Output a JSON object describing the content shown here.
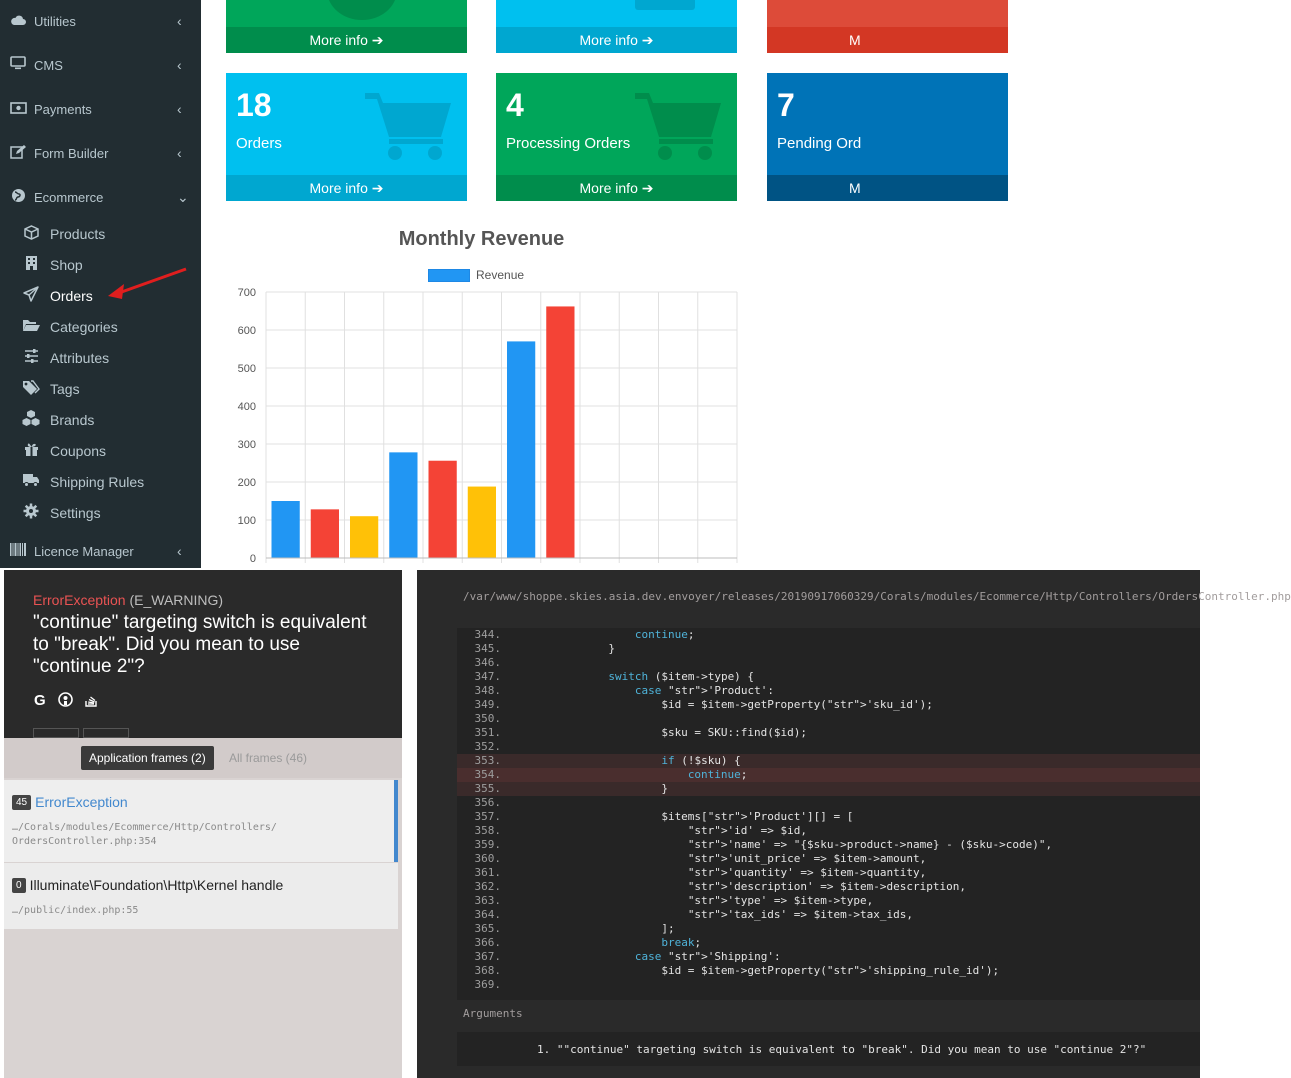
{
  "sidebar": {
    "items": [
      {
        "label": "Utilities",
        "icon": "cloud-icon"
      },
      {
        "label": "CMS",
        "icon": "desktop-icon"
      },
      {
        "label": "Payments",
        "icon": "money-icon"
      },
      {
        "label": "Form Builder",
        "icon": "edit-icon"
      },
      {
        "label": "Ecommerce",
        "icon": "globe-icon"
      }
    ],
    "ecommerce_children": [
      {
        "label": "Products",
        "icon": "cube-icon"
      },
      {
        "label": "Shop",
        "icon": "building-icon"
      },
      {
        "label": "Orders",
        "icon": "paper-plane-icon"
      },
      {
        "label": "Categories",
        "icon": "folder-open-icon"
      },
      {
        "label": "Attributes",
        "icon": "sliders-icon"
      },
      {
        "label": "Tags",
        "icon": "tags-icon"
      },
      {
        "label": "Brands",
        "icon": "cubes-icon"
      },
      {
        "label": "Coupons",
        "icon": "gift-icon"
      },
      {
        "label": "Shipping Rules",
        "icon": "truck-icon"
      },
      {
        "label": "Settings",
        "icon": "gear-icon"
      }
    ],
    "licence_manager": {
      "label": "Licence Manager",
      "icon": "barcode-icon"
    }
  },
  "boxes": {
    "top_row_more": [
      "More info",
      "More info",
      "M"
    ],
    "orders": {
      "value": "18",
      "label": "Orders",
      "more": "More info"
    },
    "processing": {
      "value": "4",
      "label": "Processing Orders",
      "more": "More info"
    },
    "pending": {
      "value": "7",
      "label": "Pending Ord",
      "more": "M"
    }
  },
  "chart_data": {
    "type": "bar",
    "title": "Monthly Revenue",
    "legend": [
      "Revenue"
    ],
    "categories": [
      "",
      "",
      "",
      "",
      "",
      "",
      "",
      "",
      "",
      "",
      "",
      ""
    ],
    "values": [
      150,
      128,
      110,
      278,
      256,
      188,
      570,
      662,
      0,
      0,
      0,
      0
    ],
    "bar_colors": [
      "#2196f3",
      "#f44336",
      "#ffc107",
      "#2196f3",
      "#f44336",
      "#ffc107",
      "#2196f3",
      "#f44336"
    ],
    "yticks": [
      0,
      100,
      200,
      300,
      400,
      500,
      600,
      700
    ],
    "ylim": [
      0,
      700
    ],
    "grid": true,
    "legend_position": "top"
  },
  "error": {
    "type_class": "ErrorException",
    "type_code": "(E_WARNING)",
    "message": "\"continue\" targeting switch is equivalent to \"break\". Did you mean to use \"continue 2\"?",
    "tab_app": "Application frames (2)",
    "tab_all": "All frames (46)",
    "frames": [
      {
        "index": "45",
        "class": "ErrorException",
        "path1": "…/Corals/modules/Ecommerce/Http/Controllers/",
        "path2": "OrdersController.php:354"
      },
      {
        "index": "0",
        "class": "Illuminate\\Foundation\\Http\\Kernel handle",
        "path1": "…/public/index.php:55"
      }
    ]
  },
  "code": {
    "path": "/var/www/shoppe.skies.asia.dev.envoyer/releases/20190917060329/Corals/modules/Ecommerce/Http/Controllers/OrdersController.php",
    "lines": [
      {
        "n": "344.",
        "t": "                continue;"
      },
      {
        "n": "345.",
        "t": "            }"
      },
      {
        "n": "346.",
        "t": ""
      },
      {
        "n": "347.",
        "t": "            switch ($item->type) {"
      },
      {
        "n": "348.",
        "t": "                case 'Product':"
      },
      {
        "n": "349.",
        "t": "                    $id = $item->getProperty('sku_id');"
      },
      {
        "n": "350.",
        "t": ""
      },
      {
        "n": "351.",
        "t": "                    $sku = SKU::find($id);"
      },
      {
        "n": "352.",
        "t": ""
      },
      {
        "n": "353.",
        "t": "                    if (!$sku) {"
      },
      {
        "n": "354.",
        "t": "                        continue;"
      },
      {
        "n": "355.",
        "t": "                    }"
      },
      {
        "n": "356.",
        "t": ""
      },
      {
        "n": "357.",
        "t": "                    $items['Product'][] = ["
      },
      {
        "n": "358.",
        "t": "                        'id' => $id,"
      },
      {
        "n": "359.",
        "t": "                        'name' => \"{$sku->product->name} - ($sku->code)\","
      },
      {
        "n": "360.",
        "t": "                        'unit_price' => $item->amount,"
      },
      {
        "n": "361.",
        "t": "                        'quantity' => $item->quantity,"
      },
      {
        "n": "362.",
        "t": "                        'description' => $item->description,"
      },
      {
        "n": "363.",
        "t": "                        'type' => $item->type,"
      },
      {
        "n": "364.",
        "t": "                        'tax_ids' => $item->tax_ids,"
      },
      {
        "n": "365.",
        "t": "                    ];"
      },
      {
        "n": "366.",
        "t": "                    break;"
      },
      {
        "n": "367.",
        "t": "                case 'Shipping':"
      },
      {
        "n": "368.",
        "t": "                    $id = $item->getProperty('shipping_rule_id');"
      },
      {
        "n": "369.",
        "t": ""
      }
    ],
    "args_label": "Arguments",
    "arg1": "1. \"\"continue\" targeting switch is equivalent to \"break\". Did you mean to use \"continue 2\"?\""
  }
}
